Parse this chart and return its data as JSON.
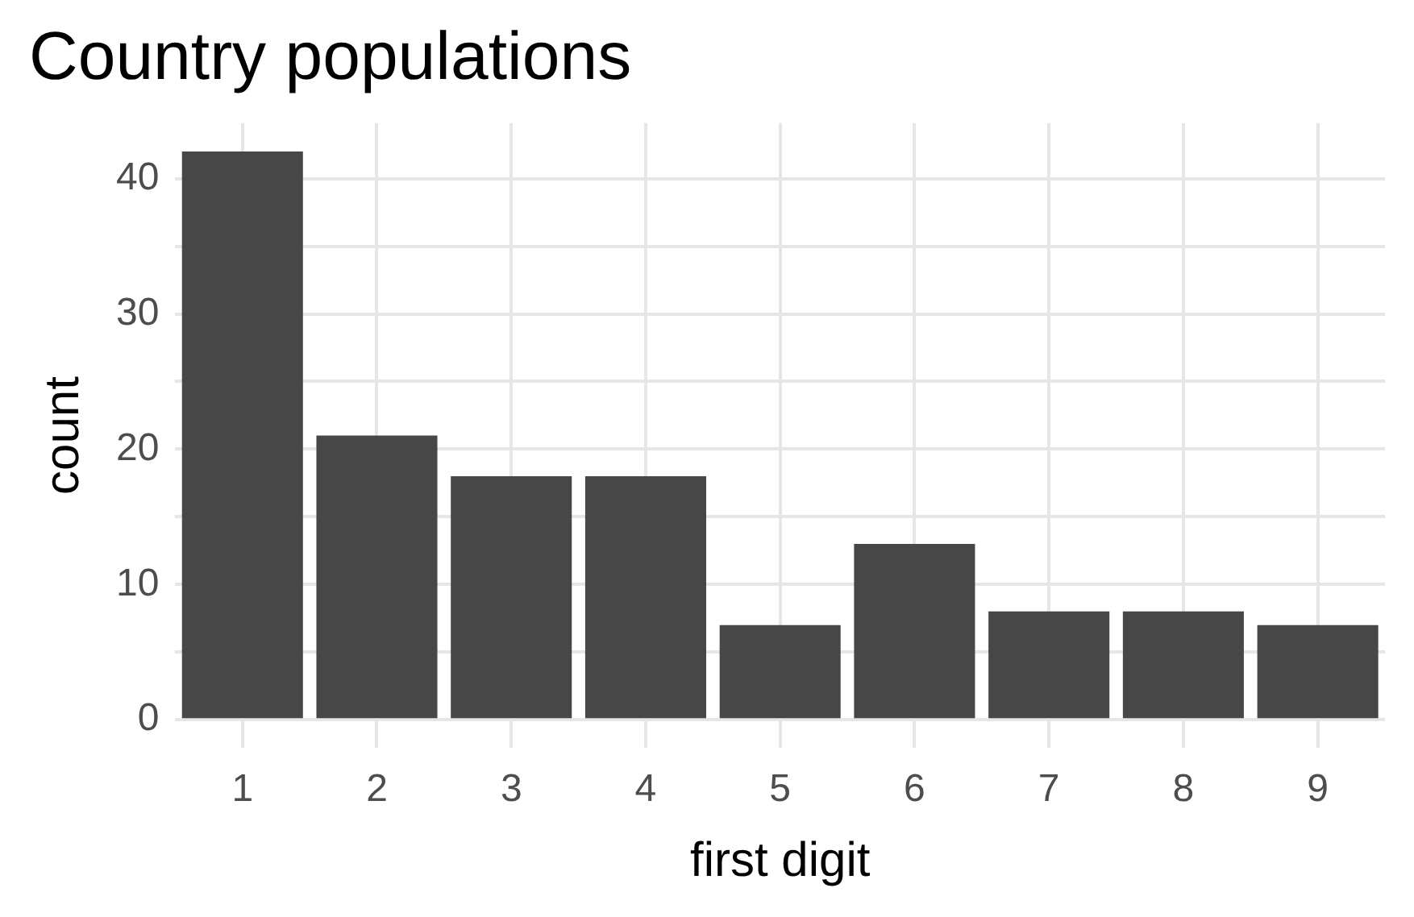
{
  "chart_data": {
    "type": "bar",
    "title": "Country populations",
    "xlabel": "first digit",
    "ylabel": "count",
    "categories": [
      "1",
      "2",
      "3",
      "4",
      "5",
      "6",
      "7",
      "8",
      "9"
    ],
    "values": [
      42,
      21,
      18,
      18,
      7,
      13,
      8,
      8,
      7
    ],
    "color": "#474747",
    "ylim": [
      -2.1,
      44.1
    ],
    "yticks": [
      0,
      {
        "value": 5,
        "label": null
      },
      10,
      {
        "value": 15,
        "label": null
      },
      20,
      {
        "value": 25,
        "label": null
      },
      30,
      {
        "value": 35,
        "label": null
      },
      40
    ],
    "grid": true,
    "legend": false
  }
}
